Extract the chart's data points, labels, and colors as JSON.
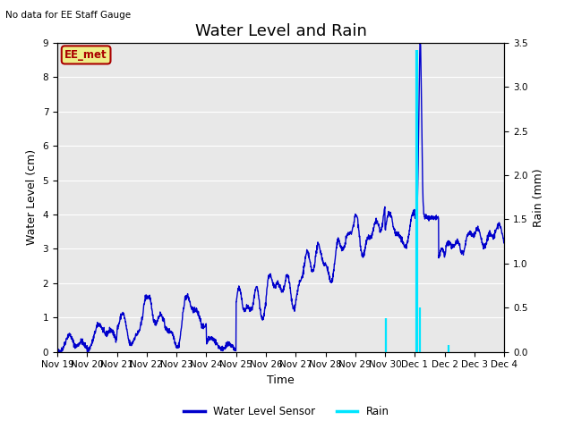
{
  "title": "Water Level and Rain",
  "top_left_text": "No data for EE Staff Gauge",
  "legend_label": "EE_met",
  "xlabel": "Time",
  "ylabel_left": "Water Level (cm)",
  "ylabel_right": "Rain (mm)",
  "ylim_left": [
    0.0,
    9.0
  ],
  "ylim_right": [
    0.0,
    3.5
  ],
  "yticks_left": [
    0.0,
    1.0,
    2.0,
    3.0,
    4.0,
    5.0,
    6.0,
    7.0,
    8.0,
    9.0
  ],
  "yticks_right": [
    0.0,
    0.5,
    1.0,
    1.5,
    2.0,
    2.5,
    3.0,
    3.5
  ],
  "xtick_labels": [
    "Nov 19",
    "Nov 20",
    "Nov 21",
    "Nov 22",
    "Nov 23",
    "Nov 24",
    "Nov 25",
    "Nov 26",
    "Nov 27",
    "Nov 28",
    "Nov 29",
    "Nov 30",
    "Dec 1",
    "Dec 2",
    "Dec 3",
    "Dec 4"
  ],
  "water_color": "#0000cc",
  "rain_color": "#00e5ff",
  "background_color": "#e8e8e8",
  "grid_color": "#ffffff",
  "legend_box_facecolor": "#eeee88",
  "legend_box_edgecolor": "#aa0000",
  "legend_box_text_color": "#aa0000",
  "title_fontsize": 13,
  "label_fontsize": 9,
  "tick_fontsize": 7.5
}
